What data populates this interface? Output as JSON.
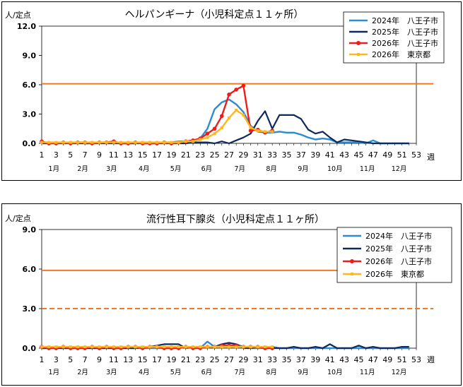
{
  "charts": [
    {
      "title": "ヘルパンギーナ（小児科定点１１ヶ所）",
      "unit_label": "人/定点",
      "week_label": "週",
      "ylim": [
        0,
        12
      ],
      "yticks": [
        "0.0",
        "3.0",
        "6.0",
        "9.0",
        "12.0"
      ],
      "ytick_values": [
        0,
        3,
        6,
        9,
        12
      ],
      "legend": [
        "2024年　八王子市",
        "2025年　八王子市",
        "2026年　八王子市",
        "2026年　東京都"
      ],
      "thresholds": [
        {
          "value": 6.1,
          "style": "solid",
          "color": "#f07820"
        }
      ]
    },
    {
      "title": "流行性耳下腺炎（小児科定点１１ヶ所）",
      "unit_label": "人/定点",
      "week_label": "週",
      "ylim": [
        0,
        9
      ],
      "yticks": [
        "0.0",
        "3.0",
        "6.0",
        "9.0"
      ],
      "ytick_values": [
        0,
        3,
        6,
        9
      ],
      "legend": [
        "2024年　八王子市",
        "2025年　八王子市",
        "2026年　八王子市",
        "2026年　東京都"
      ],
      "thresholds": [
        {
          "value": 5.9,
          "style": "solid",
          "color": "#f07820"
        },
        {
          "value": 3.0,
          "style": "dashed",
          "color": "#f07820"
        }
      ]
    }
  ],
  "x_ticks": [
    "1",
    "3",
    "5",
    "7",
    "9",
    "11",
    "13",
    "15",
    "17",
    "19",
    "21",
    "23",
    "25",
    "27",
    "29",
    "31",
    "33",
    "35",
    "37",
    "39",
    "41",
    "43",
    "45",
    "47",
    "49",
    "51",
    "53"
  ],
  "month_labels": [
    "1月",
    "2月",
    "3月",
    "4月",
    "5月",
    "6月",
    "7月",
    "8月",
    "9月",
    "10月",
    "11月",
    "12月"
  ],
  "month_weeks": [
    2.7,
    6.7,
    10.7,
    15.2,
    19.6,
    23.9,
    28.5,
    32.9,
    37.3,
    41.7,
    46.2,
    50.6
  ],
  "colors": {
    "s2024": "#2e8bd0",
    "s2025": "#0d2a5e",
    "s2026h": "#ee1c1c",
    "s2026t": "#ffb81c",
    "threshold": "#f07820"
  },
  "chart_data": [
    {
      "type": "line",
      "title": "ヘルパンギーナ（小児科定点１１ヶ所）",
      "ylabel": "人/定点",
      "xlabel": "週",
      "ylim": [
        0,
        12
      ],
      "x_range": [
        1,
        53
      ],
      "series": [
        {
          "name": "2024年　八王子市",
          "x_start": 1,
          "values": [
            0.1,
            0.1,
            0.0,
            0.1,
            0.0,
            0.1,
            0.0,
            0.0,
            0.1,
            0.0,
            0.1,
            0.0,
            0.0,
            0.0,
            0.1,
            0.0,
            0.0,
            0.1,
            0.1,
            0.2,
            0.2,
            0.3,
            0.5,
            1.5,
            3.5,
            4.2,
            4.5,
            4.0,
            3.2,
            1.8,
            1.2,
            1.1,
            1.1,
            1.2,
            1.1,
            1.1,
            0.9,
            0.6,
            0.4,
            0.5,
            0.4,
            0.1,
            0.1,
            0.1,
            0.1,
            0.0,
            0.3,
            0.0,
            0.0,
            0.0,
            0.0,
            0.0
          ]
        },
        {
          "name": "2025年　八王子市",
          "x_start": 1,
          "values": [
            0.0,
            0.0,
            0.0,
            0.0,
            0.0,
            0.0,
            0.0,
            0.0,
            0.0,
            0.0,
            0.0,
            0.0,
            0.0,
            0.0,
            0.0,
            0.0,
            0.0,
            0.0,
            0.0,
            0.0,
            0.0,
            0.1,
            0.1,
            0.1,
            0.0,
            0.2,
            0.0,
            0.3,
            0.6,
            1.0,
            2.3,
            3.3,
            1.5,
            2.9,
            2.9,
            2.9,
            2.5,
            1.4,
            1.0,
            1.2,
            0.6,
            0.1,
            0.4,
            0.3,
            0.2,
            0.1,
            0.0,
            0.0,
            0.0,
            0.0,
            0.0,
            0.0
          ]
        },
        {
          "name": "2026年　八王子市",
          "x_start": 1,
          "values": [
            0.2,
            0.0,
            0.0,
            0.1,
            0.0,
            0.1,
            0.1,
            0.0,
            0.1,
            0.1,
            0.2,
            0.0,
            0.0,
            0.1,
            0.0,
            0.0,
            0.0,
            0.1,
            0.0,
            0.1,
            0.2,
            0.3,
            0.5,
            1.0,
            1.5,
            2.8,
            5.0,
            5.5,
            5.9,
            1.3,
            1.4,
            1.1,
            1.3
          ]
        },
        {
          "name": "2026年　東京都",
          "x_start": 1,
          "values": [
            0.1,
            0.1,
            0.1,
            0.1,
            0.1,
            0.1,
            0.1,
            0.1,
            0.1,
            0.1,
            0.1,
            0.1,
            0.1,
            0.1,
            0.1,
            0.1,
            0.1,
            0.1,
            0.1,
            0.1,
            0.2,
            0.2,
            0.4,
            0.6,
            1.0,
            1.6,
            2.6,
            3.4,
            2.9,
            1.6,
            1.3,
            1.2,
            1.2
          ]
        }
      ]
    },
    {
      "type": "line",
      "title": "流行性耳下腺炎（小児科定点１１ヶ所）",
      "ylabel": "人/定点",
      "xlabel": "週",
      "ylim": [
        0,
        9
      ],
      "x_range": [
        1,
        53
      ],
      "series": [
        {
          "name": "2024年　八王子市",
          "x_start": 1,
          "values": [
            0.0,
            0.0,
            0.0,
            0.0,
            0.0,
            0.0,
            0.0,
            0.0,
            0.0,
            0.0,
            0.0,
            0.0,
            0.0,
            0.0,
            0.0,
            0.0,
            0.0,
            0.0,
            0.0,
            0.0,
            0.1,
            0.0,
            0.0,
            0.5,
            0.1,
            0.3,
            0.4,
            0.3,
            0.1,
            0.0,
            0.0,
            0.0,
            0.1,
            0.0,
            0.0,
            0.0,
            0.0,
            0.0,
            0.0,
            0.0,
            0.0,
            0.0,
            0.0,
            0.0,
            0.0,
            0.0,
            0.0,
            0.0,
            0.0,
            0.0,
            0.0,
            0.0
          ]
        },
        {
          "name": "2025年　八王子市",
          "x_start": 1,
          "values": [
            0.0,
            0.0,
            0.0,
            0.0,
            0.0,
            0.0,
            0.0,
            0.0,
            0.0,
            0.0,
            0.0,
            0.0,
            0.0,
            0.0,
            0.1,
            0.1,
            0.2,
            0.3,
            0.3,
            0.3,
            0.0,
            0.1,
            0.1,
            0.1,
            0.1,
            0.3,
            0.4,
            0.3,
            0.0,
            0.0,
            0.1,
            0.0,
            0.0,
            0.0,
            0.0,
            0.1,
            0.0,
            0.0,
            0.1,
            0.0,
            0.3,
            0.0,
            0.0,
            0.0,
            0.2,
            0.0,
            0.1,
            0.0,
            0.0,
            0.0,
            0.1,
            0.1
          ]
        },
        {
          "name": "2026年　八王子市",
          "x_start": 1,
          "values": [
            0.1,
            0.0,
            0.0,
            0.1,
            0.0,
            0.0,
            0.0,
            0.1,
            0.0,
            0.1,
            0.0,
            0.0,
            0.1,
            0.1,
            0.0,
            0.1,
            0.1,
            0.0,
            0.0,
            0.0,
            0.1,
            0.0,
            0.0,
            0.1,
            0.1,
            0.2,
            0.2,
            0.2,
            0.1,
            0.1,
            0.1,
            0.0,
            0.0
          ]
        },
        {
          "name": "2026年　東京都",
          "x_start": 1,
          "values": [
            0.1,
            0.1,
            0.1,
            0.1,
            0.1,
            0.1,
            0.1,
            0.1,
            0.1,
            0.1,
            0.1,
            0.1,
            0.1,
            0.1,
            0.1,
            0.1,
            0.1,
            0.1,
            0.1,
            0.1,
            0.1,
            0.1,
            0.1,
            0.1,
            0.1,
            0.1,
            0.1,
            0.1,
            0.1,
            0.1,
            0.1,
            0.1,
            0.1
          ]
        }
      ]
    }
  ]
}
